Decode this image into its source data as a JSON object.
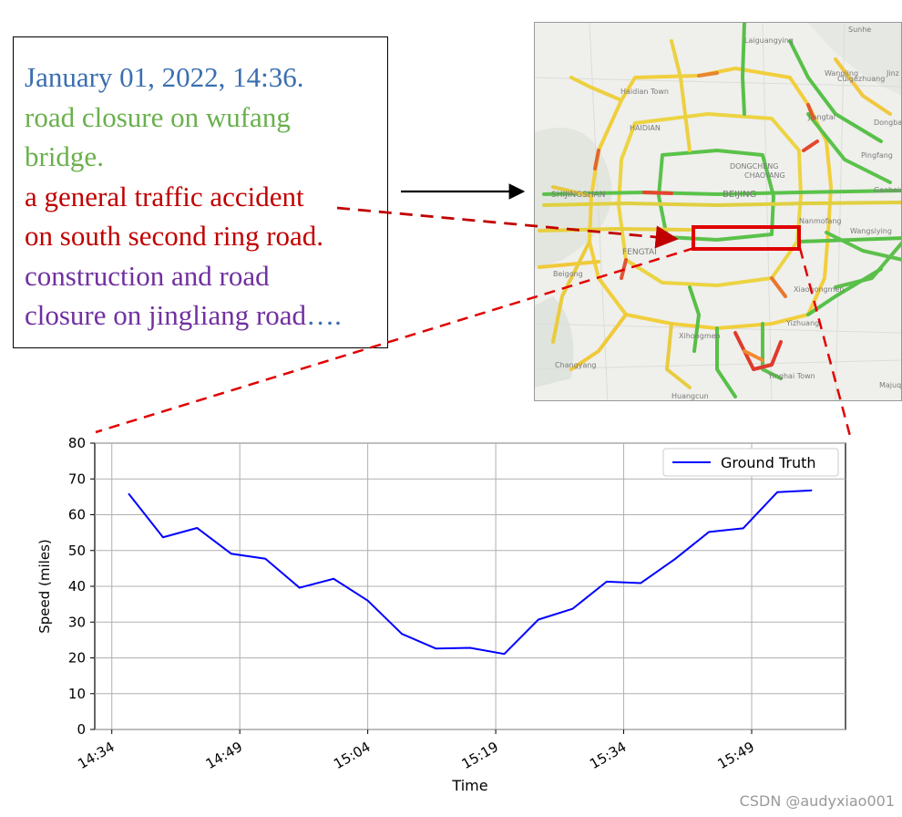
{
  "textbox": {
    "date": "January 01, 2022, 14:36.",
    "line_green_1": "road closure on wufang",
    "line_green_2": "bridge.",
    "line_red_1": "a general traffic accident",
    "line_red_2": "on south second ring road.",
    "line_purple_1": "construction and road",
    "line_purple_2_text": "closure on jingliang road",
    "line_purple_2_ellipsis": "….",
    "colors": {
      "date": "#3a6fb0",
      "green": "#6ab04c",
      "red": "#c00000",
      "purple": "#7030a0"
    }
  },
  "map": {
    "labels": {
      "sunhe": "Sunhe",
      "laiguangying": "Laiguangying",
      "jinzhan": "Jinz",
      "wangjing": "Wangjing",
      "haidian_town": "Haidian Town",
      "cuigezhuang": "Cuigezhuang",
      "jiangtai": "Jiangtai",
      "dongba": "Dongba",
      "haidian": "HAIDIAN",
      "pingfang": "Pingfang",
      "dongcheng": "DONGCHENG",
      "chaoyang": "CHAOYANG",
      "shijingshan": "SHIJINGSHAN",
      "beijing": "BEIJING",
      "gaobeidian": "Gaobeidian",
      "nanmofang": "Nanmofang",
      "wangsiying": "Wangsiying",
      "fengtai": "FENGTAI",
      "beigong": "Beigong",
      "xiaohongmen": "Xiaohongmen",
      "yizhuang": "Yizhuang",
      "xihongmen": "Xihongmen",
      "changyang": "Changyang",
      "yinghai_town": "Yinghai Town",
      "majuqiao": "Majuq",
      "huangcun": "Huangcun"
    },
    "highlight_color": "#e00000"
  },
  "chart_data": {
    "type": "line",
    "xlabel": "Time",
    "ylabel": "Speed (miles)",
    "ylim": [
      0,
      80
    ],
    "yticks": [
      0,
      10,
      20,
      30,
      40,
      50,
      60,
      70,
      80
    ],
    "xticks": [
      "14:34",
      "14:49",
      "15:04",
      "15:19",
      "15:34",
      "15:49"
    ],
    "x_unit": "minutes after 14:34",
    "xlim": [
      -2,
      86
    ],
    "grid": true,
    "legend_position": "top-right",
    "series": [
      {
        "name": "Ground Truth",
        "color": "#0000ff",
        "x": [
          "14:36",
          "14:40",
          "14:44",
          "14:48",
          "14:52",
          "14:56",
          "15:00",
          "15:04",
          "15:08",
          "15:12",
          "15:16",
          "15:20",
          "15:24",
          "15:28",
          "15:32",
          "15:36",
          "15:40",
          "15:44",
          "15:48",
          "15:52",
          "15:56"
        ],
        "values": [
          65.8,
          53.7,
          56.3,
          49.1,
          47.7,
          39.6,
          42.1,
          36.0,
          26.7,
          22.6,
          22.8,
          21.1,
          30.7,
          33.7,
          41.3,
          40.9,
          47.6,
          55.2,
          56.2,
          66.3,
          66.8
        ]
      }
    ]
  },
  "watermark": "CSDN @audyxiao001"
}
